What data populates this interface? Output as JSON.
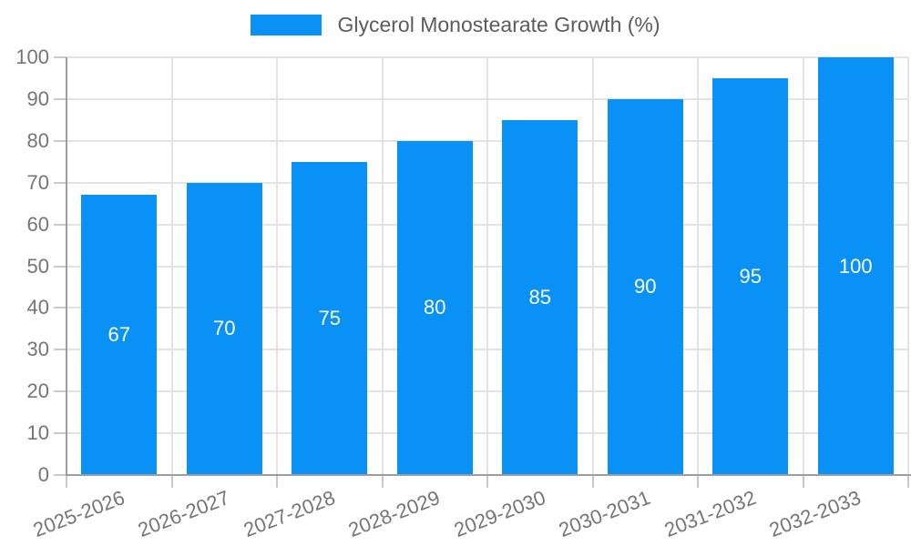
{
  "chart_data": {
    "type": "bar",
    "legend": {
      "label": "Glycerol Monostearate Growth (%)",
      "position": "top-center",
      "swatch_color": "#0a91f5"
    },
    "categories": [
      "2025-2026",
      "2026-2027",
      "2027-2028",
      "2028-2029",
      "2029-2030",
      "2030-2031",
      "2031-2032",
      "2032-2033"
    ],
    "values": [
      67,
      70,
      75,
      80,
      85,
      90,
      95,
      100
    ],
    "bar_color": "#0a91f5",
    "bar_label_color": "#ffffff",
    "ylim": [
      0,
      100
    ],
    "ytick_step": 10,
    "x_label_rotation_deg": -21,
    "grid": true,
    "gridline_color": "#e3e3e3",
    "axis_line_color": "#9e9e9e",
    "tick_color": "#c9c9c9",
    "axis_label_color": "#757575",
    "background_color": "#ffffff"
  }
}
